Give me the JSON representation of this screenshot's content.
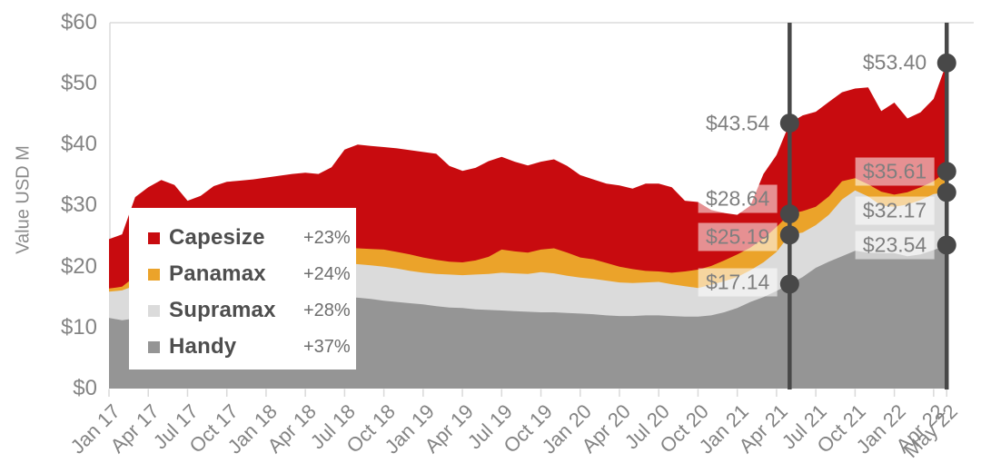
{
  "chart_data": {
    "type": "area",
    "title": "",
    "ylabel": "Value USD M",
    "ylim": [
      0,
      60
    ],
    "grid": false,
    "legend_position": "inside-left",
    "overlap_mode": "overlaid-areas-not-stacked",
    "y_ticks": [
      {
        "label": "$0",
        "value": 0
      },
      {
        "label": "$10",
        "value": 10
      },
      {
        "label": "$20",
        "value": 20
      },
      {
        "label": "$30",
        "value": 30
      },
      {
        "label": "$40",
        "value": 40
      },
      {
        "label": "$50",
        "value": 50
      },
      {
        "label": "$60",
        "value": 60
      }
    ],
    "x_ticks": [
      {
        "label": "Jan 17",
        "month": 0
      },
      {
        "label": "Apr 17",
        "month": 3
      },
      {
        "label": "Jul 17",
        "month": 6
      },
      {
        "label": "Oct 17",
        "month": 9
      },
      {
        "label": "Jan 18",
        "month": 12
      },
      {
        "label": "Apr 18",
        "month": 15
      },
      {
        "label": "Jul 18",
        "month": 18
      },
      {
        "label": "Oct 18",
        "month": 21
      },
      {
        "label": "Jan 19",
        "month": 24
      },
      {
        "label": "Apr 19",
        "month": 27
      },
      {
        "label": "Jul 19",
        "month": 30
      },
      {
        "label": "Oct 19",
        "month": 33
      },
      {
        "label": "Jan 20",
        "month": 36
      },
      {
        "label": "Apr 20",
        "month": 39
      },
      {
        "label": "Jul 20",
        "month": 42
      },
      {
        "label": "Oct 20",
        "month": 45
      },
      {
        "label": "Jan 21",
        "month": 48
      },
      {
        "label": "Apr 21",
        "month": 51
      },
      {
        "label": "Jul 21",
        "month": 54
      },
      {
        "label": "Oct 21",
        "month": 57
      },
      {
        "label": "Jan 22",
        "month": 60
      },
      {
        "label": "Apr 22",
        "month": 63
      },
      {
        "label": "May 22",
        "month": 64
      }
    ],
    "series": [
      {
        "name": "Capesize",
        "change": "+23%",
        "color": "#C80B0F",
        "values": [
          24.5,
          25.3,
          31.4,
          33.0,
          34.2,
          33.4,
          30.8,
          31.6,
          33.2,
          33.9,
          34.1,
          34.3,
          34.6,
          34.9,
          35.2,
          35.4,
          35.2,
          36.3,
          39.2,
          40.0,
          39.8,
          39.6,
          39.4,
          39.1,
          38.8,
          38.5,
          36.5,
          35.7,
          36.2,
          37.3,
          38.0,
          37.2,
          36.6,
          37.2,
          37.6,
          36.5,
          35.0,
          34.3,
          33.6,
          33.3,
          32.8,
          33.6,
          33.6,
          33.0,
          30.8,
          30.6,
          29.3,
          28.8,
          28.5,
          30.0,
          35.2,
          38.3,
          43.54,
          44.8,
          45.4,
          47.0,
          48.6,
          49.2,
          49.4,
          45.5,
          46.9,
          44.3,
          45.3,
          47.5,
          53.4
        ]
      },
      {
        "name": "Panamax",
        "change": "+24%",
        "color": "#EBA32A",
        "values": [
          16.4,
          16.7,
          18.4,
          20.0,
          21.0,
          21.2,
          20.9,
          21.3,
          21.8,
          22.2,
          22.5,
          22.7,
          23.0,
          23.2,
          23.4,
          23.5,
          23.4,
          23.3,
          23.2,
          23.0,
          22.9,
          22.8,
          22.4,
          22.0,
          21.5,
          21.1,
          20.8,
          20.7,
          21.0,
          21.6,
          22.8,
          22.5,
          22.3,
          22.8,
          23.0,
          22.3,
          21.5,
          21.2,
          20.6,
          20.0,
          19.6,
          19.3,
          19.2,
          19.0,
          19.2,
          19.5,
          20.1,
          21.0,
          22.0,
          23.1,
          24.6,
          26.5,
          28.64,
          29.1,
          29.8,
          31.5,
          34.0,
          34.5,
          33.5,
          32.3,
          31.8,
          32.2,
          33.0,
          34.0,
          35.61
        ]
      },
      {
        "name": "Supramax",
        "change": "+28%",
        "color": "#DBDBDB",
        "values": [
          15.9,
          16.1,
          16.9,
          17.9,
          18.4,
          18.7,
          19.0,
          19.3,
          19.6,
          19.9,
          20.1,
          20.3,
          20.5,
          20.7,
          20.8,
          20.9,
          20.8,
          20.7,
          20.6,
          20.4,
          20.2,
          20.0,
          19.7,
          19.3,
          19.0,
          18.8,
          18.7,
          18.6,
          18.7,
          18.8,
          19.0,
          18.9,
          18.8,
          19.1,
          18.9,
          18.5,
          18.2,
          18.0,
          17.7,
          17.4,
          17.3,
          17.4,
          17.5,
          17.1,
          16.8,
          16.5,
          17.0,
          17.6,
          18.3,
          19.4,
          20.7,
          22.4,
          25.19,
          25.6,
          26.8,
          28.5,
          31.0,
          32.5,
          31.5,
          30.0,
          29.8,
          30.2,
          30.9,
          31.9,
          32.17
        ]
      },
      {
        "name": "Handy",
        "change": "+37%",
        "color": "#959595",
        "values": [
          11.6,
          11.2,
          11.5,
          12.0,
          12.3,
          12.6,
          13.0,
          13.2,
          13.4,
          13.6,
          13.8,
          14.0,
          14.2,
          14.4,
          14.6,
          14.8,
          14.9,
          15.0,
          15.0,
          14.9,
          14.7,
          14.4,
          14.2,
          14.0,
          13.8,
          13.5,
          13.3,
          13.2,
          13.0,
          12.9,
          12.8,
          12.7,
          12.6,
          12.5,
          12.5,
          12.4,
          12.3,
          12.2,
          12.0,
          11.9,
          11.9,
          12.0,
          12.0,
          11.9,
          11.8,
          11.8,
          12.0,
          12.5,
          13.2,
          14.2,
          15.0,
          16.0,
          17.14,
          18.3,
          19.8,
          20.8,
          21.7,
          22.6,
          22.3,
          22.2,
          22.2,
          21.7,
          22.0,
          22.7,
          23.54
        ]
      }
    ],
    "annotations": [
      {
        "month": 52,
        "points": [
          {
            "series": "Capesize",
            "label": "$43.54",
            "value": 43.54,
            "dy": 0
          },
          {
            "series": "Panamax",
            "label": "$28.64",
            "value": 28.64,
            "dy": -17
          },
          {
            "series": "Supramax",
            "label": "$25.19",
            "value": 25.19,
            "dy": 2
          },
          {
            "series": "Handy",
            "label": "$17.14",
            "value": 17.14,
            "dy": -2
          }
        ]
      },
      {
        "month": 64,
        "points": [
          {
            "series": "Capesize",
            "label": "$53.40",
            "value": 53.4,
            "dy": 0
          },
          {
            "series": "Panamax",
            "label": "$35.61",
            "value": 35.61,
            "dy": 0
          },
          {
            "series": "Supramax",
            "label": "$32.17",
            "value": 32.17,
            "dy": 20
          },
          {
            "series": "Handy",
            "label": "$23.54",
            "value": 23.54,
            "dy": 0
          }
        ]
      }
    ],
    "colors": {
      "annotation_line": "#484848",
      "annotation_marker": "#484848",
      "axis_text": "#848484",
      "plot_border": "#dcdcdc",
      "tick_mark": "#d9d9d9"
    }
  }
}
